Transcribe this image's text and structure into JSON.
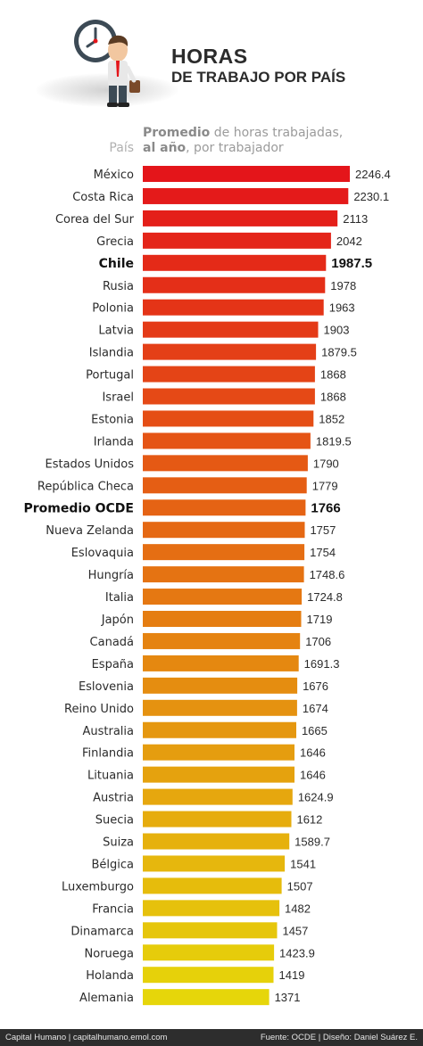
{
  "header": {
    "title": "HORAS",
    "subtitle": "DE TRABAJO POR PAÍS",
    "col_header_line1_bold": "Promedio",
    "col_header_line1_rest": " de horas trabajadas,",
    "col_header_line2_bold": "al año",
    "col_header_line2_rest": ", por trabajador",
    "country_col_label": "País"
  },
  "chart_data": {
    "type": "bar",
    "orientation": "horizontal",
    "title": "HORAS DE TRABAJO POR PAÍS",
    "xlabel": "Promedio de horas trabajadas, al año, por trabajador",
    "ylabel": "País",
    "categories": [
      "México",
      "Costa Rica",
      "Corea del Sur",
      "Grecia",
      "Chile",
      "Rusia",
      "Polonia",
      "Latvia",
      "Islandia",
      "Portugal",
      "Israel",
      "Estonia",
      "Irlanda",
      "Estados Unidos",
      "República Checa",
      "Promedio OCDE",
      "Nueva Zelanda",
      "Eslovaquia",
      "Hungría",
      "Italia",
      "Japón",
      "Canadá",
      "España",
      "Eslovenia",
      "Reino Unido",
      "Australia",
      "Finlandia",
      "Lituania",
      "Austria",
      "Suecia",
      "Suiza",
      "Bélgica",
      "Luxemburgo",
      "Francia",
      "Dinamarca",
      "Noruega",
      "Holanda",
      "Alemania"
    ],
    "values": [
      2246.4,
      2230.1,
      2113,
      2042,
      1987.5,
      1978,
      1963,
      1903,
      1879.5,
      1868,
      1868,
      1852,
      1819.5,
      1790,
      1779,
      1766,
      1757,
      1754,
      1748.6,
      1724.8,
      1719,
      1706,
      1691.3,
      1676,
      1674,
      1665,
      1646,
      1646,
      1624.9,
      1612,
      1589.7,
      1541,
      1507,
      1482,
      1457,
      1423.9,
      1419,
      1371
    ],
    "value_labels": [
      "2246.4",
      "2230.1",
      "2113",
      "2042",
      "1987.5",
      "1978",
      "1963",
      "1903",
      "1879.5",
      "1868",
      "1868",
      "1852",
      "1819.5",
      "1790",
      "1779",
      "1766",
      "1757",
      "1754",
      "1748.6",
      "1724.8",
      "1719",
      "1706",
      "1691.3",
      "1676",
      "1674",
      "1665",
      "1646",
      "1646",
      "1624.9",
      "1612",
      "1589.7",
      "1541",
      "1507",
      "1482",
      "1457",
      "1423.9",
      "1419",
      "1371"
    ],
    "highlighted": [
      "Chile",
      "Promedio OCDE"
    ],
    "color_top": "#e4151a",
    "color_bottom": "#e6d60a",
    "grid": false
  },
  "footer": {
    "left": "Capital Humano   |   capitalhumano.emol.com",
    "right": "Fuente: OCDE   |   Diseño: Daniel Suárez E."
  }
}
